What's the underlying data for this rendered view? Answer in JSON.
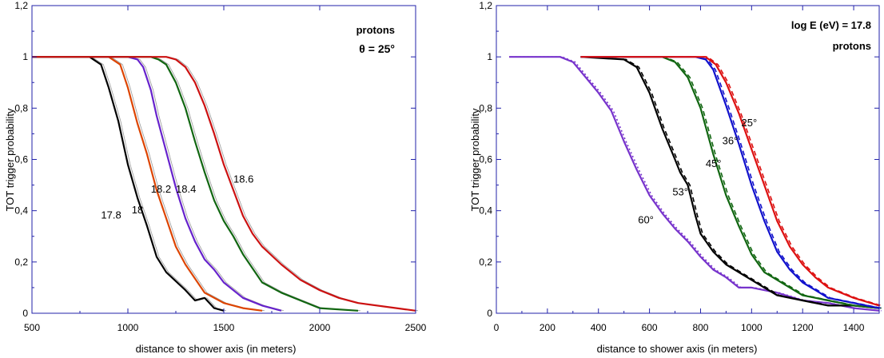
{
  "chart_data": [
    {
      "type": "line",
      "panel": "left",
      "annotations": [
        "protons",
        "θ = 25°"
      ],
      "xlabel": "distance to shower axis (in meters)",
      "ylabel": "TOT trigger probability",
      "xlim": [
        500,
        2500
      ],
      "ylim": [
        0,
        1.2
      ],
      "xticks": [
        500,
        1000,
        1500,
        2000,
        2500
      ],
      "xtick_labels": [
        "500",
        "1000",
        "1500",
        "2000",
        "2500"
      ],
      "yticks": [
        0,
        0.2,
        0.4,
        0.6,
        0.8,
        1,
        1.2
      ],
      "ytick_labels": [
        "0",
        "0,2",
        "0,4",
        "0,6",
        "0,8",
        "1",
        "1,2"
      ],
      "grid": false,
      "colors": {
        "axis": "#2222aa",
        "fit": "#999999"
      },
      "series": [
        {
          "name": "17.8",
          "color": "#000000",
          "label_at": [
            860,
            0.37
          ],
          "x": [
            500,
            800,
            860,
            900,
            950,
            1000,
            1050,
            1100,
            1150,
            1200,
            1300,
            1350,
            1400,
            1450,
            1500
          ],
          "y": [
            1,
            1,
            0.97,
            0.88,
            0.75,
            0.58,
            0.45,
            0.34,
            0.22,
            0.16,
            0.09,
            0.05,
            0.06,
            0.02,
            0.01
          ]
        },
        {
          "name": "18",
          "color": "#dd4400",
          "label_at": [
            1020,
            0.39
          ],
          "x": [
            500,
            900,
            960,
            1000,
            1050,
            1100,
            1150,
            1200,
            1250,
            1300,
            1400,
            1500,
            1600,
            1700
          ],
          "y": [
            1,
            1,
            0.97,
            0.88,
            0.74,
            0.62,
            0.48,
            0.37,
            0.26,
            0.19,
            0.08,
            0.04,
            0.02,
            0.01
          ]
        },
        {
          "name": "18.2",
          "color": "#6622cc",
          "label_at": [
            1120,
            0.47
          ],
          "x": [
            500,
            1000,
            1050,
            1080,
            1120,
            1150,
            1200,
            1250,
            1300,
            1350,
            1400,
            1450,
            1500,
            1600,
            1700,
            1800
          ],
          "y": [
            1,
            1,
            0.99,
            0.96,
            0.87,
            0.77,
            0.63,
            0.49,
            0.37,
            0.28,
            0.21,
            0.17,
            0.12,
            0.06,
            0.03,
            0.01
          ]
        },
        {
          "name": "18.4",
          "color": "#116611",
          "label_at": [
            1250,
            0.47
          ],
          "x": [
            500,
            1120,
            1160,
            1200,
            1250,
            1300,
            1350,
            1400,
            1450,
            1500,
            1550,
            1600,
            1700,
            1800,
            1900,
            2000,
            2200
          ],
          "y": [
            1,
            1,
            0.99,
            0.97,
            0.9,
            0.8,
            0.67,
            0.55,
            0.44,
            0.36,
            0.3,
            0.23,
            0.12,
            0.08,
            0.05,
            0.02,
            0.01
          ]
        },
        {
          "name": "18.6",
          "color": "#cc1111",
          "label_at": [
            1550,
            0.51
          ],
          "x": [
            500,
            1200,
            1250,
            1300,
            1350,
            1400,
            1450,
            1500,
            1550,
            1600,
            1650,
            1700,
            1800,
            1900,
            2000,
            2100,
            2200,
            2400,
            2500
          ],
          "y": [
            1,
            1,
            0.99,
            0.96,
            0.9,
            0.81,
            0.7,
            0.58,
            0.48,
            0.38,
            0.31,
            0.26,
            0.19,
            0.13,
            0.09,
            0.06,
            0.04,
            0.02,
            0.01
          ]
        }
      ]
    },
    {
      "type": "line",
      "panel": "right",
      "annotations": [
        "log E (eV) = 17.8",
        "protons"
      ],
      "xlabel": "distance to shower axis (in meters)",
      "ylabel": "TOT trigger probability",
      "xlim": [
        0,
        1500
      ],
      "ylim": [
        0,
        1.2
      ],
      "xticks": [
        0,
        200,
        400,
        600,
        800,
        1000,
        1200,
        1400
      ],
      "xtick_labels": [
        "0",
        "200",
        "400",
        "600",
        "800",
        "1000",
        "1200",
        "1400"
      ],
      "yticks": [
        0,
        0.2,
        0.4,
        0.6,
        0.8,
        1,
        1.2
      ],
      "ytick_labels": [
        "0",
        "0,2",
        "0,4",
        "0,6",
        "0,8",
        "1",
        "1,2"
      ],
      "grid": false,
      "colors": {
        "axis": "#2222aa"
      },
      "series": [
        {
          "name": "60°",
          "color": "#7733cc",
          "label_at": [
            555,
            0.35
          ],
          "x": [
            50,
            250,
            300,
            350,
            400,
            450,
            500,
            550,
            600,
            650,
            700,
            750,
            800,
            850,
            900,
            950,
            1000,
            1100,
            1200,
            1300,
            1400,
            1500
          ],
          "y": [
            1,
            1,
            0.98,
            0.92,
            0.86,
            0.79,
            0.67,
            0.56,
            0.46,
            0.39,
            0.33,
            0.28,
            0.22,
            0.17,
            0.14,
            0.1,
            0.1,
            0.08,
            0.05,
            0.04,
            0.02,
            0.01
          ]
        },
        {
          "name": "53°",
          "color": "#000000",
          "label_at": [
            690,
            0.46
          ],
          "x": [
            330,
            500,
            550,
            600,
            650,
            700,
            720,
            750,
            780,
            800,
            850,
            900,
            1000,
            1100,
            1200,
            1300,
            1400,
            1500
          ],
          "y": [
            1,
            0.99,
            0.96,
            0.86,
            0.72,
            0.6,
            0.55,
            0.5,
            0.38,
            0.31,
            0.24,
            0.19,
            0.13,
            0.07,
            0.05,
            0.03,
            0.03,
            0.02
          ]
        },
        {
          "name": "45°",
          "color": "#116611",
          "label_at": [
            820,
            0.57
          ],
          "x": [
            330,
            650,
            700,
            750,
            800,
            850,
            900,
            950,
            1000,
            1050,
            1100,
            1150,
            1200,
            1300,
            1400,
            1500
          ],
          "y": [
            1,
            1,
            0.98,
            0.92,
            0.8,
            0.62,
            0.46,
            0.34,
            0.23,
            0.16,
            0.13,
            0.1,
            0.07,
            0.05,
            0.03,
            0.02
          ]
        },
        {
          "name": "36°",
          "color": "#1111cc",
          "label_at": [
            885,
            0.66
          ],
          "x": [
            330,
            780,
            820,
            850,
            900,
            950,
            1000,
            1050,
            1100,
            1150,
            1200,
            1250,
            1300,
            1400,
            1500
          ],
          "y": [
            1,
            1,
            0.99,
            0.95,
            0.81,
            0.66,
            0.5,
            0.36,
            0.24,
            0.17,
            0.12,
            0.09,
            0.06,
            0.04,
            0.02
          ]
        },
        {
          "name": "25°",
          "color": "#dd1111",
          "label_at": [
            960,
            0.73
          ],
          "x": [
            330,
            820,
            860,
            900,
            950,
            1000,
            1050,
            1100,
            1150,
            1200,
            1250,
            1300,
            1400,
            1500
          ],
          "y": [
            1,
            1,
            0.97,
            0.9,
            0.78,
            0.64,
            0.5,
            0.36,
            0.26,
            0.19,
            0.14,
            0.1,
            0.06,
            0.03
          ]
        }
      ]
    }
  ]
}
